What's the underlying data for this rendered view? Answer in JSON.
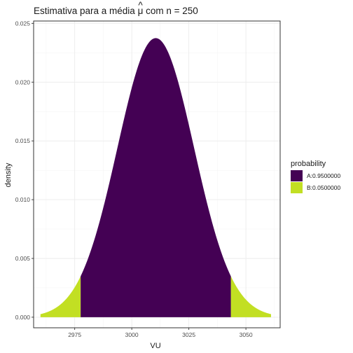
{
  "chart_data": {
    "type": "area",
    "title_prefix": "Estimativa para a média",
    "title_symbol": "μ",
    "title_hat": "^",
    "title_suffix": "com n = 250",
    "xlabel": "VU",
    "ylabel": "density",
    "xlim": [
      2957,
      3065
    ],
    "ylim": [
      -0.0009,
      0.0252
    ],
    "x_ticks": [
      2975,
      3000,
      3025,
      3050
    ],
    "y_ticks": [
      0.0,
      0.005,
      0.01,
      0.015,
      0.02,
      0.025
    ],
    "y_tick_labels": [
      "0.000",
      "0.005",
      "0.010",
      "0.015",
      "0.020",
      "0.025"
    ],
    "distribution": {
      "family": "normal",
      "mean": 3010.5,
      "sd": 16.8,
      "x_from": 2960,
      "x_to": 3061
    },
    "interval": {
      "lower": 2977.6,
      "upper": 3043.4
    },
    "legend": {
      "title": "probability",
      "position": "right",
      "entries": [
        {
          "label": "A:0.9500000",
          "color": "#440154"
        },
        {
          "label": "B:0.0500000",
          "color": "#c2df23"
        }
      ]
    },
    "series": [
      {
        "name": "A:0.9500000",
        "region": "inside",
        "color": "#440154"
      },
      {
        "name": "B:0.0500000",
        "region": "tails",
        "color": "#c2df23"
      }
    ]
  }
}
